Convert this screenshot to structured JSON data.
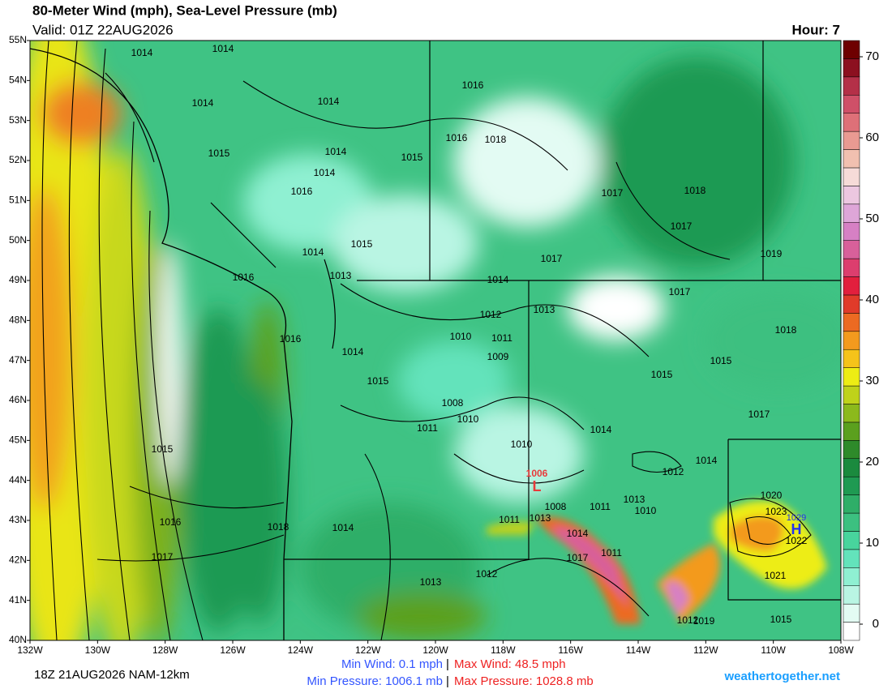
{
  "header": {
    "title": "80-Meter Wind (mph), Sea-Level Pressure (mb)",
    "valid": "Valid: 01Z 22AUG2026",
    "hour": "Hour: 7"
  },
  "map": {
    "lat_labels": [
      "55N",
      "54N",
      "53N",
      "52N",
      "51N",
      "50N",
      "49N",
      "48N",
      "47N",
      "46N",
      "45N",
      "44N",
      "43N",
      "42N",
      "41N",
      "40N"
    ],
    "lon_labels": [
      "132W",
      "130W",
      "128W",
      "126W",
      "124W",
      "122W",
      "120W",
      "118W",
      "116W",
      "114W",
      "112W",
      "110W",
      "108W"
    ],
    "isobar_labels": [
      "1014",
      "1014",
      "1014",
      "1014",
      "1016",
      "1016",
      "1018",
      "1015",
      "1014",
      "1014",
      "1016",
      "1015",
      "1014",
      "1015",
      "1013",
      "1016",
      "1017",
      "1017",
      "1018",
      "1017",
      "1019",
      "1017",
      "1014",
      "1012",
      "1013",
      "1011",
      "1010",
      "1009",
      "1016",
      "1014",
      "1015",
      "1015",
      "1008",
      "1011",
      "1010",
      "1010",
      "1014",
      "1015",
      "1018",
      "1017",
      "1014",
      "1012",
      "1013",
      "1011",
      "1010",
      "1008",
      "1011",
      "1013",
      "1014",
      "1017",
      "1011",
      "1012",
      "1014",
      "1018",
      "1016",
      "1017",
      "1013",
      "1012",
      "1020",
      "1023",
      "1022",
      "1021",
      "1019",
      "1015",
      "1015"
    ],
    "low_label": "L",
    "low_value": "1006",
    "high_label": "H",
    "high_value": "1029"
  },
  "colorbar": {
    "ticks": [
      0,
      10,
      20,
      30,
      40,
      50,
      60,
      70
    ],
    "lim": [
      -2,
      72
    ],
    "colors": [
      "#ffffff",
      "#e3fbf3",
      "#b9f5e3",
      "#8ff0d2",
      "#63e3bb",
      "#48d49d",
      "#3cc080",
      "#2fae68",
      "#1f9a52",
      "#1b8a3e",
      "#2e8a2a",
      "#5ba01e",
      "#8cb91c",
      "#bfd21a",
      "#eded14",
      "#f5c31a",
      "#f39a1e",
      "#ec6a22",
      "#e03b2a",
      "#e21f3d",
      "#dc3e6e",
      "#d8609a",
      "#d680c4",
      "#dea6d8",
      "#ecc7e0",
      "#f6dbd8",
      "#f1c0b0",
      "#e99a92",
      "#de7078",
      "#cf5068",
      "#b43048",
      "#8c1020",
      "#6e0000"
    ]
  },
  "footer": {
    "run": "18Z 21AUG2026 NAM-12km",
    "min_wind": "Min Wind:   0.1 mph",
    "max_wind": "Max Wind:  48.5 mph",
    "min_pressure": "Min Pressure: 1006.1 mb",
    "max_pressure": "Max Pressure: 1028.8 mb",
    "site": "weathertogether.net"
  }
}
